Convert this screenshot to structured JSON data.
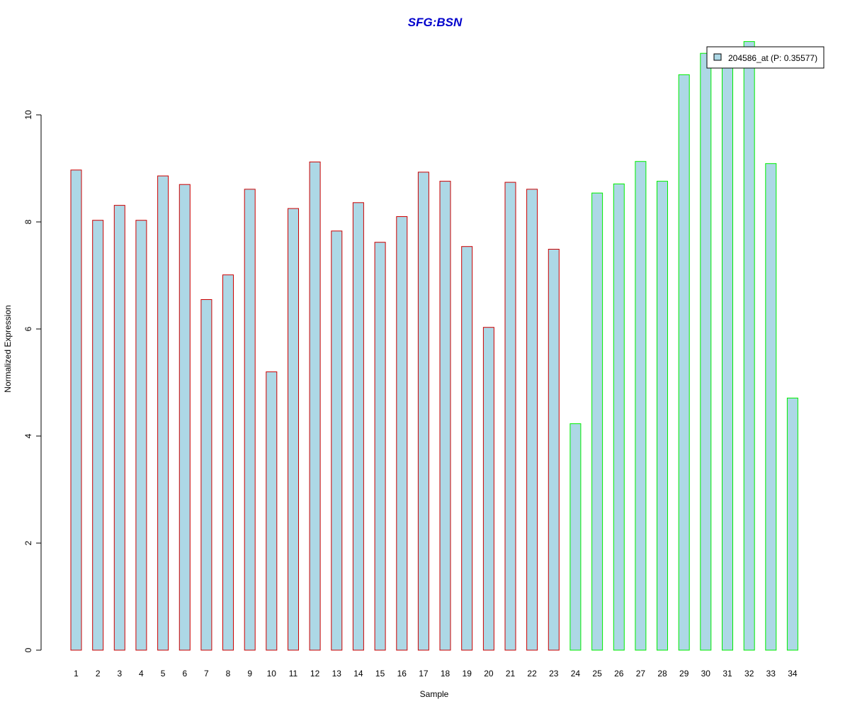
{
  "chart_data": {
    "type": "bar",
    "title": "SFG:BSN",
    "title_color": "#0000CC",
    "xlabel": "Sample",
    "ylabel": "Normalized Expression",
    "ylim": [
      0,
      11.4
    ],
    "yticks": [
      0,
      2,
      4,
      6,
      8,
      10
    ],
    "grid": false,
    "legend_position": "top-right",
    "fill_color": "#ADD8E6",
    "categories": [
      "1",
      "2",
      "3",
      "4",
      "5",
      "6",
      "7",
      "8",
      "9",
      "10",
      "11",
      "12",
      "13",
      "14",
      "15",
      "16",
      "17",
      "18",
      "19",
      "20",
      "21",
      "22",
      "23",
      "24",
      "25",
      "26",
      "27",
      "28",
      "29",
      "30",
      "31",
      "32",
      "33",
      "34"
    ],
    "series": [
      {
        "name": "204586_at (P: 0.35577)",
        "values": [
          8.97,
          8.03,
          8.31,
          8.03,
          8.86,
          8.7,
          6.55,
          7.01,
          8.61,
          5.2,
          8.25,
          9.12,
          7.83,
          8.36,
          7.62,
          8.1,
          8.93,
          8.76,
          7.54,
          6.03,
          8.74,
          8.61,
          7.49,
          4.23,
          8.54,
          8.71,
          9.13,
          8.76,
          10.75,
          11.15,
          11.08,
          11.37,
          9.09,
          4.71
        ],
        "groups": [
          "group1",
          "group1",
          "group1",
          "group1",
          "group1",
          "group1",
          "group1",
          "group1",
          "group1",
          "group1",
          "group1",
          "group1",
          "group1",
          "group1",
          "group1",
          "group1",
          "group1",
          "group1",
          "group1",
          "group1",
          "group1",
          "group1",
          "group1",
          "group2",
          "group2",
          "group2",
          "group2",
          "group2",
          "group2",
          "group2",
          "group2",
          "group2",
          "group2",
          "group2"
        ]
      }
    ],
    "group_border_colors": {
      "group1": "#CC0000",
      "group2": "#00EE00"
    }
  }
}
